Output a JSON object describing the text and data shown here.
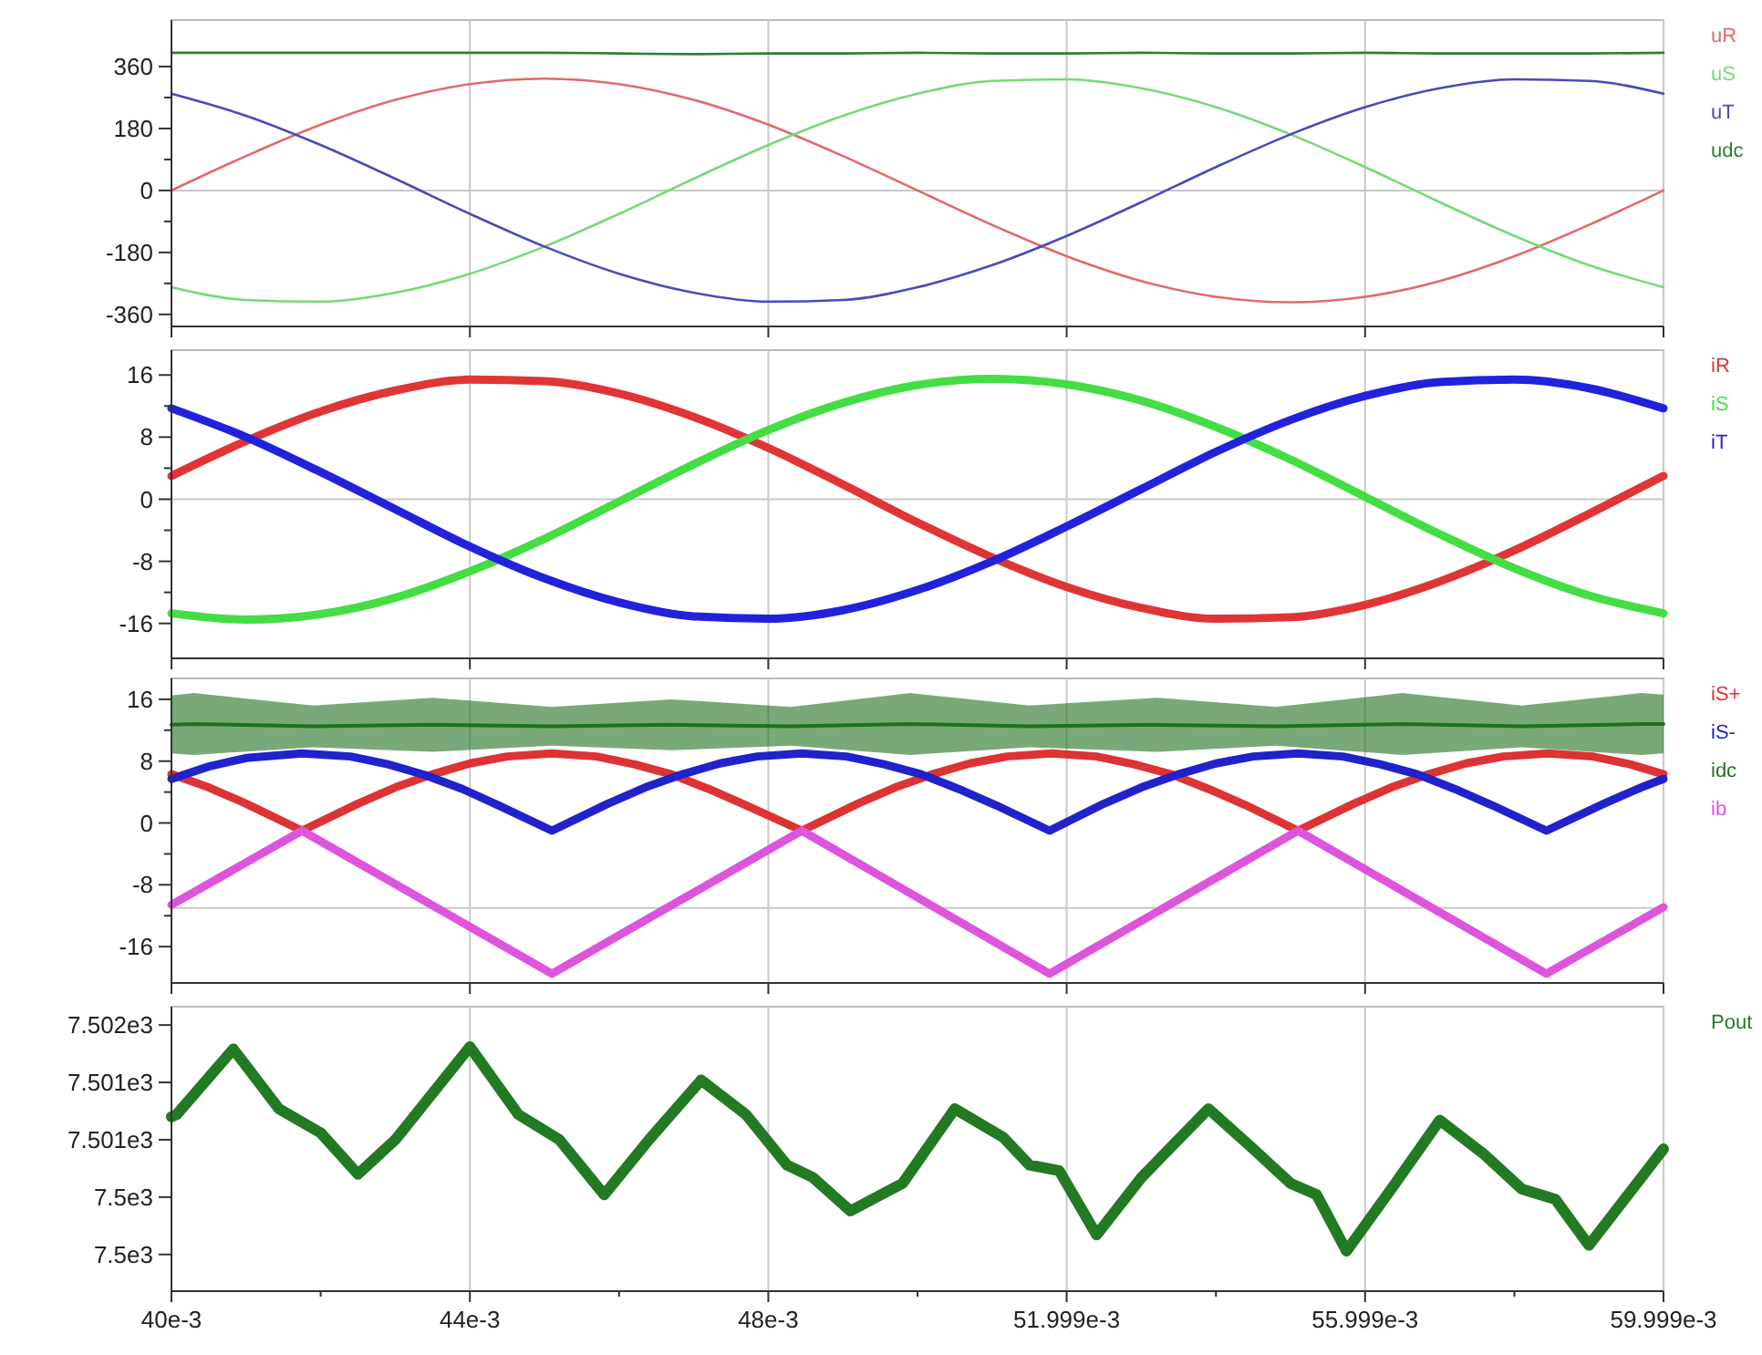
{
  "chart_data": [
    {
      "type": "line",
      "x": [
        0.04,
        0.041,
        0.042,
        0.043,
        0.044,
        0.045,
        0.046,
        0.047,
        0.048,
        0.049,
        0.05,
        0.051,
        0.052,
        0.053,
        0.054,
        0.055,
        0.056,
        0.057,
        0.058,
        0.059,
        0.059999
      ],
      "series": [
        {
          "name": "uR",
          "color": "#e06a6a",
          "values": [
            0,
            100,
            191,
            263,
            309,
            325,
            309,
            263,
            191,
            100,
            0,
            -100,
            -191,
            -263,
            -309,
            -325,
            -309,
            -263,
            -191,
            -100,
            0
          ]
        },
        {
          "name": "uS",
          "color": "#77d977",
          "values": [
            -281,
            -318,
            -323,
            -297,
            -242,
            -163,
            -68,
            34,
            132,
            217,
            281,
            318,
            323,
            297,
            242,
            163,
            68,
            -34,
            -132,
            -217,
            -281
          ]
        },
        {
          "name": "uT",
          "color": "#4a4ab8",
          "values": [
            281,
            217,
            132,
            34,
            -68,
            -163,
            -242,
            -297,
            -323,
            -318,
            -281,
            -217,
            -132,
            -34,
            68,
            163,
            242,
            297,
            323,
            318,
            281
          ]
        },
        {
          "name": "udc",
          "color": "#2e7d32",
          "values": [
            400,
            400,
            400,
            400,
            400,
            400,
            398,
            396,
            398,
            398,
            400,
            398,
            398,
            400,
            398,
            398,
            400,
            398,
            398,
            398,
            400
          ]
        }
      ],
      "xlim": [
        0.04,
        0.059999
      ],
      "xticks": [
        {
          "value": 0.04,
          "label": null
        },
        {
          "value": 0.044,
          "label": null
        },
        {
          "value": 0.048,
          "label": null
        },
        {
          "value": 0.051999,
          "label": null
        },
        {
          "value": 0.055999,
          "label": null
        },
        {
          "value": 0.059999,
          "label": null
        }
      ],
      "ylim": [
        -395,
        495
      ],
      "yticks": [
        -360,
        {
          "value": -270,
          "label": null
        },
        -180,
        {
          "value": -90,
          "label": null
        },
        0,
        {
          "value": 90,
          "label": null
        },
        180,
        {
          "value": 270,
          "label": null
        },
        360
      ],
      "grid": "x",
      "legend": "right",
      "tick_labels": "y",
      "ref_lines": [
        {
          "axis": "y",
          "value": 0,
          "color": "#c8c8c8"
        }
      ]
    },
    {
      "type": "line",
      "x": [
        0.04,
        0.041,
        0.042,
        0.043,
        0.044,
        0.045,
        0.046,
        0.047,
        0.048,
        0.049,
        0.05,
        0.051,
        0.052,
        0.053,
        0.054,
        0.055,
        0.056,
        0.057,
        0.058,
        0.059,
        0.059999
      ],
      "series": [
        {
          "name": "iR",
          "color": "#e03535",
          "values": [
            3,
            7.5,
            11.3,
            14,
            15.4,
            15.2,
            13.6,
            10.6,
            6.6,
            1.9,
            -3,
            -7.5,
            -11.3,
            -14,
            -15.4,
            -15.2,
            -13.6,
            -10.6,
            -6.6,
            -1.9,
            3
          ]
        },
        {
          "name": "iS",
          "color": "#44dd44",
          "values": [
            -14.7,
            -15.5,
            -14.8,
            -12.7,
            -9.3,
            -5.1,
            -0.3,
            4.5,
            8.9,
            12.4,
            14.7,
            15.5,
            14.8,
            12.7,
            9.3,
            5.1,
            0.3,
            -4.5,
            -8.9,
            -12.4,
            -14.7
          ]
        },
        {
          "name": "iT",
          "color": "#2222dd",
          "values": [
            11.7,
            8,
            3.5,
            -1.3,
            -6.1,
            -10.2,
            -13.3,
            -15.1,
            -15.4,
            -14.3,
            -11.7,
            -8,
            -3.5,
            1.3,
            6.1,
            10.2,
            13.3,
            15.1,
            15.4,
            14.3,
            11.7
          ]
        }
      ],
      "xlim": [
        0.04,
        0.059999
      ],
      "xticks": [
        {
          "value": 0.04,
          "label": null
        },
        {
          "value": 0.044,
          "label": null
        },
        {
          "value": 0.048,
          "label": null
        },
        {
          "value": 0.051999,
          "label": null
        },
        {
          "value": 0.055999,
          "label": null
        },
        {
          "value": 0.059999,
          "label": null
        }
      ],
      "ylim": [
        -20.5,
        19.2
      ],
      "yticks": [
        -16,
        {
          "value": -12,
          "label": null
        },
        -8,
        {
          "value": -4,
          "label": null
        },
        0,
        {
          "value": 4,
          "label": null
        },
        8,
        {
          "value": 12,
          "label": null
        },
        16
      ],
      "grid": "x",
      "legend": "right",
      "tick_labels": "y",
      "ref_lines": [
        {
          "axis": "y",
          "value": 0,
          "color": "#c8c8c8"
        }
      ]
    },
    {
      "type": "line",
      "series": [
        {
          "name": "iS+",
          "color": "#dd3333",
          "x": [
            0.04,
            0.0405,
            0.041,
            0.04175,
            0.0425,
            0.043,
            0.0435,
            0.044,
            0.0445,
            0.0451,
            0.0457,
            0.0462,
            0.0467,
            0.0472,
            0.0477,
            0.04845,
            0.0492,
            0.0497,
            0.0502,
            0.0507,
            0.0512,
            0.0518,
            0.0524,
            0.0529,
            0.0534,
            0.0539,
            0.0544,
            0.0551,
            0.05585,
            0.05635,
            0.05685,
            0.05735,
            0.05785,
            0.05845,
            0.05905,
            0.05955,
            0.059999
          ],
          "values": [
            6.3,
            4.6,
            2.5,
            -1,
            2.5,
            4.6,
            6.3,
            7.7,
            8.6,
            9,
            8.6,
            7.6,
            6.3,
            4.4,
            2.3,
            -1,
            2.5,
            4.6,
            6.3,
            7.7,
            8.6,
            9,
            8.6,
            7.6,
            6.3,
            4.4,
            2.3,
            -1,
            2.5,
            4.6,
            6.3,
            7.7,
            8.6,
            9,
            8.6,
            7.6,
            6.3
          ]
        },
        {
          "name": "iS-",
          "color": "#2222cc",
          "x": [
            0.04,
            0.0405,
            0.041,
            0.04175,
            0.0424,
            0.0429,
            0.0434,
            0.0439,
            0.0444,
            0.0451,
            0.04585,
            0.04635,
            0.04685,
            0.04735,
            0.04785,
            0.04845,
            0.04905,
            0.04955,
            0.05005,
            0.05055,
            0.05105,
            0.05177,
            0.0525,
            0.053,
            0.0535,
            0.054,
            0.0545,
            0.0551,
            0.0557,
            0.0562,
            0.0567,
            0.0572,
            0.0577,
            0.05843,
            0.0592,
            0.0597,
            0.059999
          ],
          "values": [
            5.7,
            7.3,
            8.4,
            9,
            8.6,
            7.6,
            6.2,
            4.4,
            2.2,
            -1,
            2.5,
            4.6,
            6.3,
            7.7,
            8.6,
            9,
            8.6,
            7.6,
            6.3,
            4.4,
            2.3,
            -1,
            2.5,
            4.6,
            6.3,
            7.7,
            8.6,
            9,
            8.6,
            7.6,
            6.3,
            4.4,
            2.3,
            -1,
            2.5,
            4.6,
            5.7
          ]
        },
        {
          "name": "idc",
          "color": "#207020",
          "x": [
            0.04,
            0.0403,
            0.0419,
            0.0435,
            0.0451,
            0.0467,
            0.0483,
            0.0499,
            0.0515,
            0.0532,
            0.0548,
            0.0565,
            0.0581,
            0.0597,
            0.059999
          ],
          "values": [
            12.7,
            12.8,
            12.5,
            12.7,
            12.5,
            12.7,
            12.5,
            12.8,
            12.5,
            12.7,
            12.5,
            12.8,
            12.5,
            12.8,
            12.8
          ],
          "lower": [
            9,
            8.8,
            9.8,
            9.2,
            10,
            9.4,
            10,
            8.8,
            9.8,
            9.2,
            10,
            8.8,
            9.8,
            8.8,
            9
          ],
          "upper": [
            16.5,
            16.8,
            15.2,
            16.2,
            15,
            16,
            15,
            16.8,
            15.2,
            16.2,
            15,
            16.8,
            15.2,
            16.8,
            16.6
          ]
        },
        {
          "name": "ib",
          "color": "#dd55dd",
          "x": [
            0.04,
            0.04175,
            0.0451,
            0.04845,
            0.05177,
            0.0551,
            0.05843,
            0.059999
          ],
          "values": [
            -10.6,
            -1,
            -19.5,
            -1,
            -19.5,
            -1,
            -19.5,
            -10.9
          ]
        }
      ],
      "xlim": [
        0.04,
        0.059999
      ],
      "xticks": [
        {
          "value": 0.04,
          "label": null
        },
        {
          "value": 0.044,
          "label": null
        },
        {
          "value": 0.048,
          "label": null
        },
        {
          "value": 0.051999,
          "label": null
        },
        {
          "value": 0.055999,
          "label": null
        },
        {
          "value": 0.059999,
          "label": null
        }
      ],
      "ylim": [
        -20.7,
        18.7
      ],
      "yticks": [
        -16,
        {
          "value": -12,
          "label": null
        },
        -8,
        {
          "value": -4,
          "label": null
        },
        0,
        {
          "value": 4,
          "label": null
        },
        8,
        {
          "value": 12,
          "label": null
        },
        16
      ],
      "grid": "x",
      "legend": "right",
      "tick_labels": "y",
      "ref_lines": [
        {
          "axis": "y",
          "value": -11,
          "color": "#c8c8c8"
        }
      ]
    },
    {
      "type": "line",
      "series": [
        {
          "name": "Pout",
          "color": "#227a22",
          "x": [
            0.04,
            0.04007,
            0.04083,
            0.04144,
            0.042,
            0.0425,
            0.043,
            0.044,
            0.04465,
            0.0452,
            0.0458,
            0.0464,
            0.0471,
            0.0477,
            0.04825,
            0.0486,
            0.0491,
            0.0498,
            0.0505,
            0.05115,
            0.0515,
            0.0519,
            0.0524,
            0.053,
            0.0539,
            0.0545,
            0.055,
            0.05535,
            0.05575,
            0.05635,
            0.057,
            0.0576,
            0.0581,
            0.05855,
            0.059,
            0.059999
          ],
          "values": [
            7501.2,
            7501.22,
            7501.79,
            7501.27,
            7501.06,
            7500.7,
            7501,
            7501.81,
            7501.22,
            7501,
            7500.52,
            7501,
            7501.52,
            7501.22,
            7500.78,
            7500.67,
            7500.38,
            7500.62,
            7501.27,
            7501.02,
            7500.78,
            7500.73,
            7500.17,
            7500.67,
            7501.27,
            7500.92,
            7500.62,
            7500.52,
            7500.03,
            7500.57,
            7501.17,
            7500.87,
            7500.57,
            7500.48,
            7500.08,
            7500.92
          ]
        }
      ],
      "xlim": [
        0.04,
        0.059999
      ],
      "xticks": [
        {
          "value": 0.04,
          "label": "40e-3"
        },
        {
          "value": 0.042,
          "label": null
        },
        {
          "value": 0.044,
          "label": "44e-3"
        },
        {
          "value": 0.046,
          "label": null
        },
        {
          "value": 0.048,
          "label": "48e-3"
        },
        {
          "value": 0.05,
          "label": null
        },
        {
          "value": 0.051999,
          "label": "51.999e-3"
        },
        {
          "value": 0.054,
          "label": null
        },
        {
          "value": 0.055999,
          "label": "55.999e-3"
        },
        {
          "value": 0.058,
          "label": null
        },
        {
          "value": 0.059999,
          "label": "59.999e-3"
        }
      ],
      "ylim": [
        7499.68,
        7502.16
      ],
      "yticks": [
        {
          "value": 7500,
          "label": "7.5e3"
        },
        {
          "value": 7500.5,
          "label": "7.5e3"
        },
        {
          "value": 7501,
          "label": "7.501e3"
        },
        {
          "value": 7501.5,
          "label": "7.501e3"
        },
        {
          "value": 7502,
          "label": "7.502e3"
        }
      ],
      "grid": "x",
      "legend": "right"
    }
  ]
}
